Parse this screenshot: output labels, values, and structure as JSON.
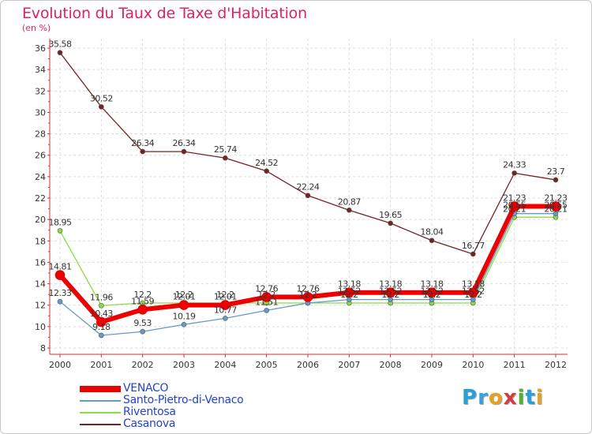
{
  "title": "Evolution du Taux de Taxe d'Habitation",
  "subtitle": "(en %)",
  "logo": [
    "P",
    "r",
    "o",
    "x",
    "i",
    "t",
    "i"
  ],
  "logo_colors": [
    "#2aa0d8",
    "#3aa0d8",
    "#e8a020",
    "#d93a3a",
    "#55b030",
    "#2aa0d8",
    "#e8a020"
  ],
  "chart_data": {
    "type": "line",
    "title": "Evolution du Taux de Taxe d'Habitation",
    "ylabel": "(en %)",
    "x": [
      "2000",
      "2001",
      "2002",
      "2003",
      "2004",
      "2005",
      "2006",
      "2007",
      "2008",
      "2009",
      "2010",
      "2011",
      "2012"
    ],
    "ylim": [
      8,
      36
    ],
    "yticks": [
      8,
      10,
      12,
      14,
      16,
      18,
      20,
      22,
      24,
      26,
      28,
      30,
      32,
      34,
      36
    ],
    "grid": true,
    "legend_position": "bottom-left",
    "series": [
      {
        "name": "VENACO",
        "color": "#ee0000",
        "values": [
          14.81,
          10.43,
          11.59,
          12.01,
          12.01,
          12.76,
          12.76,
          13.18,
          13.18,
          13.18,
          13.18,
          21.23,
          21.23
        ]
      },
      {
        "name": "Santo-Pietro-di-Venaco",
        "color": "#6699cc",
        "values": [
          12.33,
          9.18,
          9.53,
          10.19,
          10.77,
          11.51,
          12.2,
          12.52,
          12.52,
          12.52,
          12.52,
          20.55,
          20.55
        ]
      },
      {
        "name": "Riventosa",
        "color": "#88dd44",
        "values": [
          18.95,
          11.96,
          12.2,
          12.2,
          12.2,
          12.2,
          12.2,
          12.2,
          12.2,
          12.2,
          12.2,
          20.21,
          20.21
        ]
      },
      {
        "name": "Casanova",
        "color": "#772222",
        "values": [
          35.58,
          30.52,
          26.34,
          26.34,
          25.74,
          24.52,
          22.24,
          20.87,
          19.65,
          18.04,
          16.77,
          24.33,
          23.7
        ]
      }
    ],
    "labels": [
      [
        {
          "i": 0,
          "t": "14.81"
        },
        {
          "i": 1,
          "t": "10.43"
        },
        {
          "i": 2,
          "t": "11.59"
        },
        {
          "i": 3,
          "t": "12.01"
        },
        {
          "i": 4,
          "t": "12.01"
        },
        {
          "i": 5,
          "t": "12.76"
        },
        {
          "i": 6,
          "t": "12.76"
        },
        {
          "i": 7,
          "t": "13.18"
        },
        {
          "i": 8,
          "t": "13.18"
        },
        {
          "i": 9,
          "t": "13.18"
        },
        {
          "i": 10,
          "t": "13.18"
        },
        {
          "i": 11,
          "t": "21.23"
        },
        {
          "i": 12,
          "t": "21.23"
        }
      ],
      [
        {
          "i": 0,
          "t": "12.33"
        },
        {
          "i": 1,
          "t": "9.18"
        },
        {
          "i": 2,
          "t": "9.53"
        },
        {
          "i": 3,
          "t": "10.19"
        },
        {
          "i": 4,
          "t": "10.77"
        },
        {
          "i": 5,
          "t": "11.51"
        },
        {
          "i": 6,
          "t": "12.2"
        },
        {
          "i": 7,
          "t": "12.52"
        },
        {
          "i": 8,
          "t": "12.52"
        },
        {
          "i": 9,
          "t": "12.52"
        },
        {
          "i": 10,
          "t": "12.52"
        },
        {
          "i": 11,
          "t": "20.55"
        },
        {
          "i": 12,
          "t": "20.55"
        }
      ],
      [
        {
          "i": 0,
          "t": "18.95"
        },
        {
          "i": 1,
          "t": "11.96"
        },
        {
          "i": 2,
          "t": "12.2"
        },
        {
          "i": 3,
          "t": "12.2"
        },
        {
          "i": 4,
          "t": "12.2"
        },
        {
          "i": 5,
          "t": "12.2"
        },
        {
          "i": 6,
          "t": "12.2"
        },
        {
          "i": 7,
          "t": "12.2"
        },
        {
          "i": 8,
          "t": "12.2"
        },
        {
          "i": 9,
          "t": "12.2"
        },
        {
          "i": 10,
          "t": "12.2"
        },
        {
          "i": 11,
          "t": "20.21"
        },
        {
          "i": 12,
          "t": "20.21"
        }
      ],
      [
        {
          "i": 0,
          "t": "35.58"
        },
        {
          "i": 1,
          "t": "30.52"
        },
        {
          "i": 2,
          "t": "26.34"
        },
        {
          "i": 3,
          "t": "26.34"
        },
        {
          "i": 4,
          "t": "25.74"
        },
        {
          "i": 5,
          "t": "24.52"
        },
        {
          "i": 6,
          "t": "22.24"
        },
        {
          "i": 7,
          "t": "20.87"
        },
        {
          "i": 8,
          "t": "19.65"
        },
        {
          "i": 9,
          "t": "18.04"
        },
        {
          "i": 10,
          "t": "16.77"
        },
        {
          "i": 11,
          "t": "24.33"
        },
        {
          "i": 12,
          "t": "23.7"
        }
      ]
    ]
  }
}
